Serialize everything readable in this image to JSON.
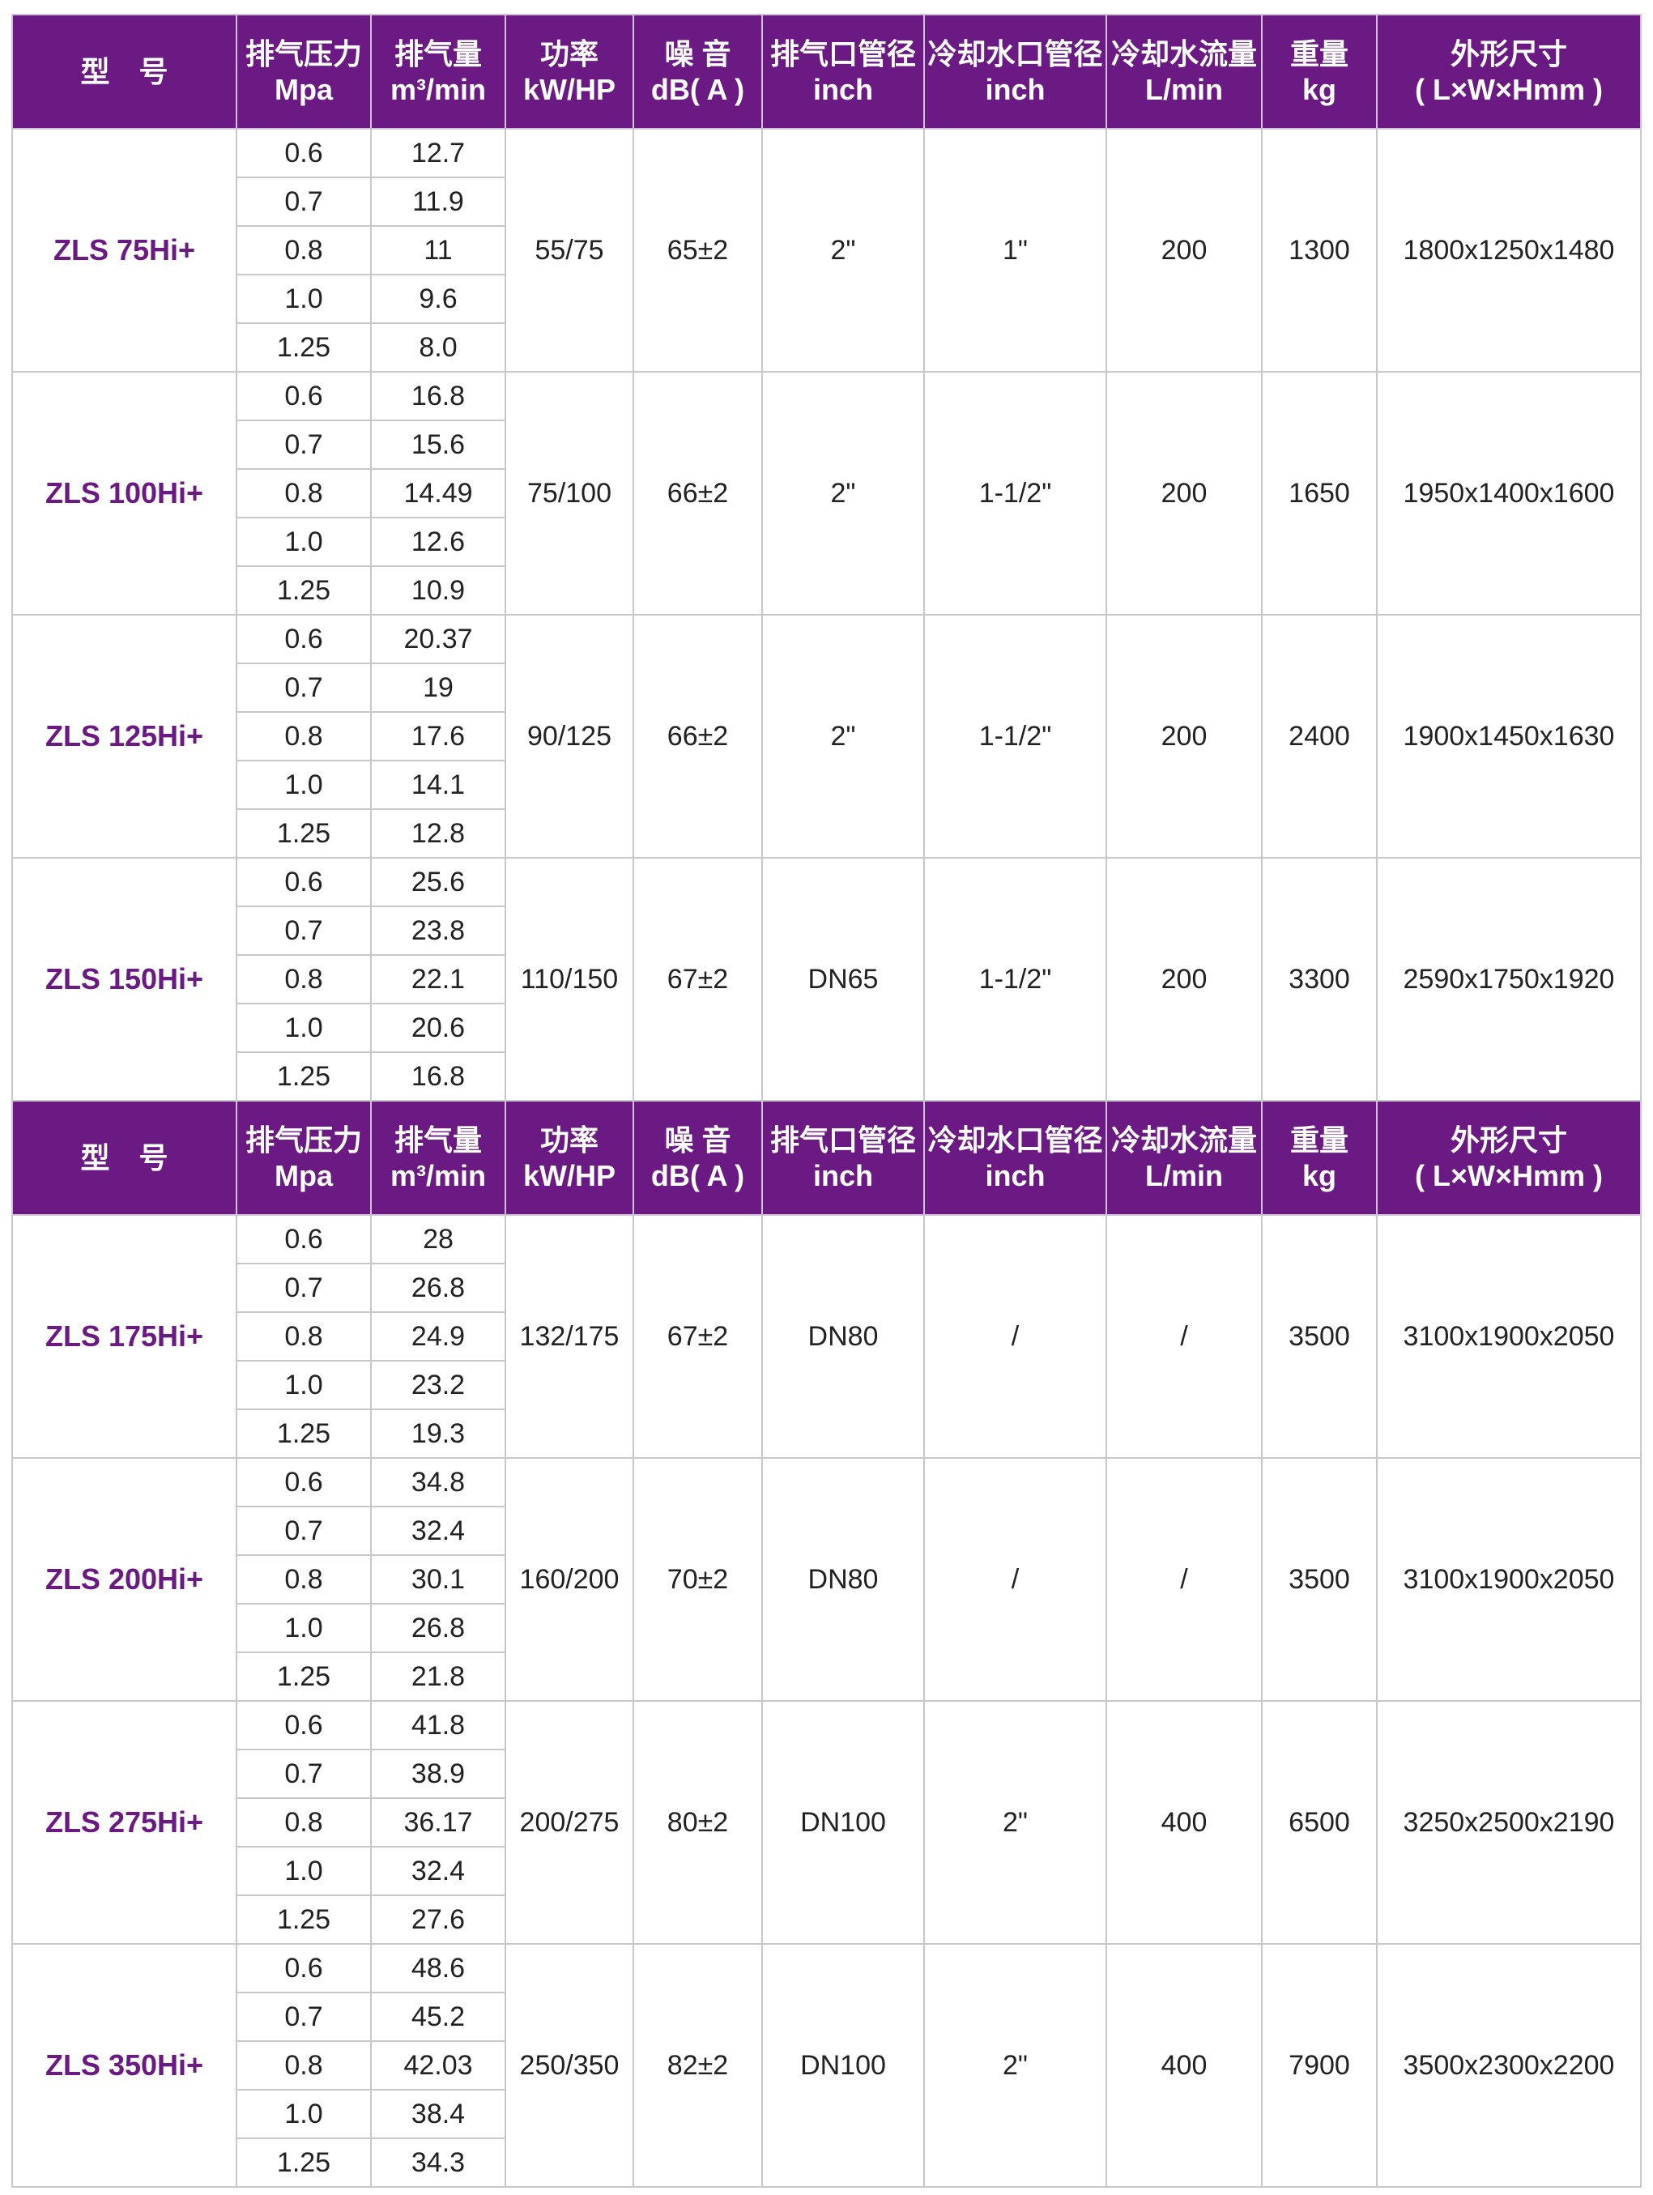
{
  "headers": [
    [
      "型　号",
      ""
    ],
    [
      "排气压力",
      "Mpa"
    ],
    [
      "排气量",
      "m³/min"
    ],
    [
      "功率",
      "kW/HP"
    ],
    [
      "噪 音",
      "dB( A )"
    ],
    [
      "排气口管径",
      "inch"
    ],
    [
      "冷却水口管径",
      "inch"
    ],
    [
      "冷却水流量",
      "L/min"
    ],
    [
      "重量",
      "kg"
    ],
    [
      "外形尺寸",
      "( L×W×Hmm )"
    ]
  ],
  "accent_color": "#6a1a82",
  "pressures": [
    "0.6",
    "0.7",
    "0.8",
    "1.0",
    "1.25"
  ],
  "models": [
    {
      "model": "ZLS 75Hi+",
      "flows": [
        "12.7",
        "11.9",
        "11",
        "9.6",
        "8.0"
      ],
      "power": "55/75",
      "noise": "65±2",
      "outlet": "2\"",
      "water_port": "1\"",
      "water_flow": "200",
      "weight": "1300",
      "size": "1800x1250x1480"
    },
    {
      "model": "ZLS 100Hi+",
      "flows": [
        "16.8",
        "15.6",
        "14.49",
        "12.6",
        "10.9"
      ],
      "power": "75/100",
      "noise": "66±2",
      "outlet": "2\"",
      "water_port": "1-1/2\"",
      "water_flow": "200",
      "weight": "1650",
      "size": "1950x1400x1600"
    },
    {
      "model": "ZLS 125Hi+",
      "flows": [
        "20.37",
        "19",
        "17.6",
        "14.1",
        "12.8"
      ],
      "power": "90/125",
      "noise": "66±2",
      "outlet": "2\"",
      "water_port": "1-1/2\"",
      "water_flow": "200",
      "weight": "2400",
      "size": "1900x1450x1630"
    },
    {
      "model": "ZLS 150Hi+",
      "flows": [
        "25.6",
        "23.8",
        "22.1",
        "20.6",
        "16.8"
      ],
      "power": "110/150",
      "noise": "67±2",
      "outlet": "DN65",
      "water_port": "1-1/2\"",
      "water_flow": "200",
      "weight": "3300",
      "size": "2590x1750x1920"
    },
    {
      "model": "ZLS 175Hi+",
      "flows": [
        "28",
        "26.8",
        "24.9",
        "23.2",
        "19.3"
      ],
      "power": "132/175",
      "noise": "67±2",
      "outlet": "DN80",
      "water_port": "/",
      "water_flow": "/",
      "weight": "3500",
      "size": "3100x1900x2050"
    },
    {
      "model": "ZLS 200Hi+",
      "flows": [
        "34.8",
        "32.4",
        "30.1",
        "26.8",
        "21.8"
      ],
      "power": "160/200",
      "noise": "70±2",
      "outlet": "DN80",
      "water_port": "/",
      "water_flow": "/",
      "weight": "3500",
      "size": "3100x1900x2050"
    },
    {
      "model": "ZLS 275Hi+",
      "flows": [
        "41.8",
        "38.9",
        "36.17",
        "32.4",
        "27.6"
      ],
      "power": "200/275",
      "noise": "80±2",
      "outlet": "DN100",
      "water_port": "2\"",
      "water_flow": "400",
      "weight": "6500",
      "size": "3250x2500x2190"
    },
    {
      "model": "ZLS 350Hi+",
      "flows": [
        "48.6",
        "45.2",
        "42.03",
        "38.4",
        "34.3"
      ],
      "power": "250/350",
      "noise": "82±2",
      "outlet": "DN100",
      "water_port": "2\"",
      "water_flow": "400",
      "weight": "7900",
      "size": "3500x2300x2200"
    }
  ]
}
